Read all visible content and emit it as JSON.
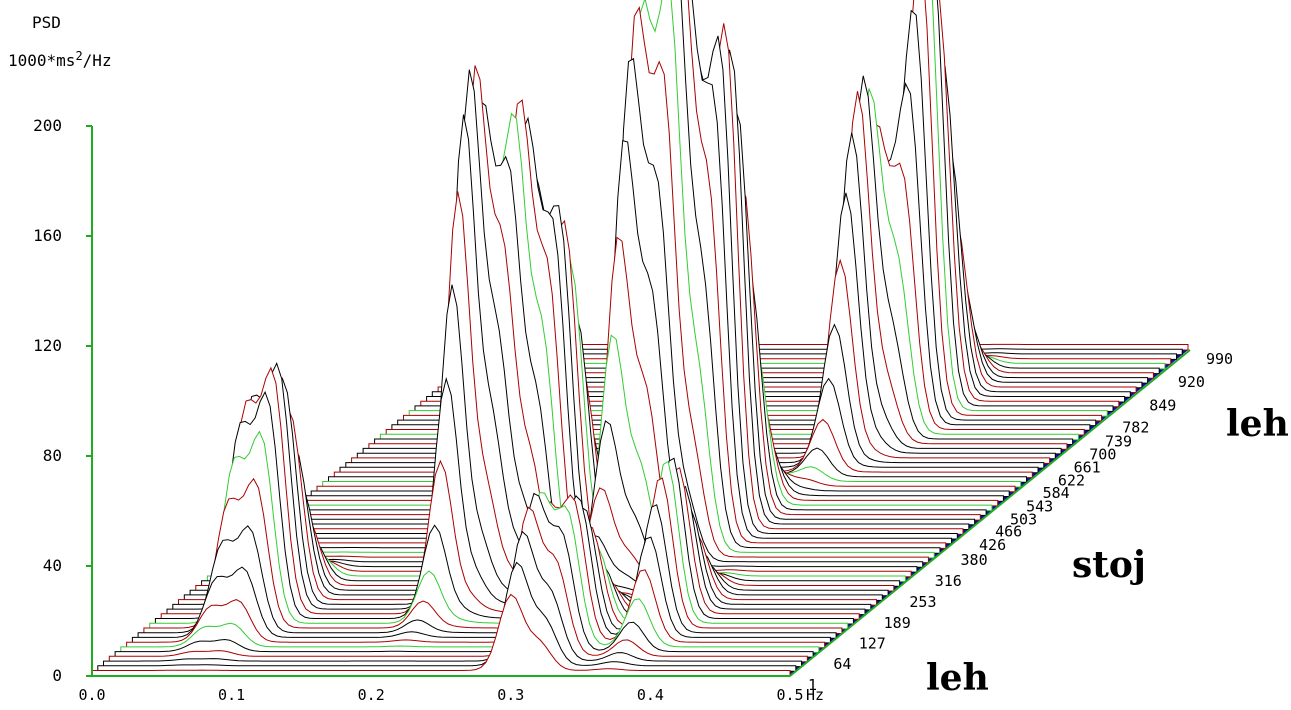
{
  "chart_data": {
    "type": "area",
    "chart_style": "3d-waterfall",
    "ylabel_line1": "PSD",
    "ylabel_line2_prefix": "1000*ms",
    "ylabel_line2_sup": "2",
    "ylabel_line2_suffix": "/Hz",
    "x_unit": "Hz",
    "y_ticks": [
      "0",
      "40",
      "80",
      "120",
      "160",
      "200"
    ],
    "ylim": [
      0,
      200
    ],
    "x_ticks": [
      "0.0",
      "0.1",
      "0.2",
      "0.3",
      "0.4",
      "0.5"
    ],
    "xlim": [
      0.0,
      0.5
    ],
    "z_ticks": [
      "1",
      "64",
      "127",
      "189",
      "253",
      "316",
      "380",
      "426",
      "466",
      "503",
      "543",
      "584",
      "622",
      "661",
      "700",
      "739",
      "782",
      "849",
      "920",
      "990"
    ],
    "zlim": [
      1,
      990
    ],
    "segment_labels": [
      {
        "text": "leh",
        "position": "front"
      },
      {
        "text": "stoj",
        "position": "middle"
      },
      {
        "text": "leh",
        "position": "back"
      }
    ],
    "peaks": [
      {
        "x": 0.06,
        "z": 180,
        "y": 72
      },
      {
        "x": 0.08,
        "z": 180,
        "y": 85
      },
      {
        "x": 0.2,
        "z": 250,
        "y": 185
      },
      {
        "x": 0.22,
        "z": 300,
        "y": 160
      },
      {
        "x": 0.24,
        "z": 330,
        "y": 120
      },
      {
        "x": 0.29,
        "z": 350,
        "y": 190
      },
      {
        "x": 0.31,
        "z": 380,
        "y": 210
      },
      {
        "x": 0.33,
        "z": 430,
        "y": 175
      },
      {
        "x": 0.3,
        "z": 60,
        "y": 55
      },
      {
        "x": 0.32,
        "z": 90,
        "y": 50
      },
      {
        "x": 0.37,
        "z": 150,
        "y": 60
      },
      {
        "x": 0.35,
        "z": 700,
        "y": 130
      },
      {
        "x": 0.37,
        "z": 790,
        "y": 175
      }
    ],
    "colors": {
      "axis": "#22aa22",
      "floor": "#0b0ba8",
      "floor_light": "#5566ee",
      "line_black": "#000000",
      "line_red": "#aa0000",
      "line_green": "#33cc33"
    }
  }
}
